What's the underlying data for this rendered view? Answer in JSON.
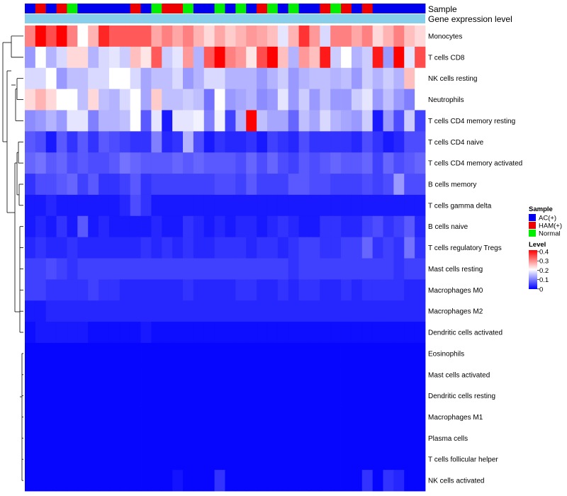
{
  "chart_data": {
    "type": "heatmap",
    "annotation_tracks": [
      "Sample",
      "Gene expression level"
    ],
    "rows": [
      "Monocytes",
      "T cells CD8",
      "NK cells resting",
      "Neutrophils",
      "T cells CD4 memory resting",
      "T cells CD4 naive",
      "T cells CD4 memory activated",
      "B cells memory",
      "T cells gamma delta",
      "B cells naive",
      "T cells regulatory  Tregs",
      "Mast cells resting",
      "Macrophages M0",
      "Macrophages M2",
      "Dendritic cells activated",
      "Eosinophils",
      "Mast cells activated",
      "Dendritic cells resting",
      "Macrophages M1",
      "Plasma cells",
      "T cells follicular helper",
      "NK cells activated"
    ],
    "sample_groups": [
      "AC(+)",
      "HAM(+)",
      "AC(+)",
      "HAM(+)",
      "Normal",
      "AC(+)",
      "AC(+)",
      "AC(+)",
      "AC(+)",
      "AC(+)",
      "HAM(+)",
      "AC(+)",
      "Normal",
      "HAM(+)",
      "HAM(+)",
      "Normal",
      "AC(+)",
      "AC(+)",
      "Normal",
      "AC(+)",
      "Normal",
      "AC(+)",
      "HAM(+)",
      "Normal",
      "AC(+)",
      "Normal",
      "AC(+)",
      "AC(+)",
      "HAM(+)",
      "Normal",
      "HAM(+)",
      "AC(+)",
      "HAM(+)",
      "AC(+)",
      "AC(+)",
      "AC(+)",
      "AC(+)",
      "AC(+)"
    ],
    "values": [
      [
        0.3,
        0.4,
        0.34,
        0.4,
        0.3,
        0.2,
        0.26,
        0.37,
        0.33,
        0.33,
        0.33,
        0.33,
        0.27,
        0.3,
        0.27,
        0.3,
        0.26,
        0.23,
        0.27,
        0.24,
        0.26,
        0.28,
        0.27,
        0.25,
        0.18,
        0.26,
        0.36,
        0.28,
        0.17,
        0.3,
        0.3,
        0.27,
        0.3,
        0.23,
        0.26,
        0.3,
        0.25,
        0.23
      ],
      [
        0.12,
        0.2,
        0.14,
        0.17,
        0.23,
        0.23,
        0.14,
        0.17,
        0.18,
        0.16,
        0.25,
        0.22,
        0.33,
        0.16,
        0.18,
        0.28,
        0.14,
        0.33,
        0.4,
        0.3,
        0.28,
        0.22,
        0.34,
        0.4,
        0.25,
        0.14,
        0.28,
        0.25,
        0.38,
        0.16,
        0.2,
        0.14,
        0.16,
        0.38,
        0.12,
        0.4,
        0.18,
        0.34
      ],
      [
        0.17,
        0.17,
        0.2,
        0.12,
        0.15,
        0.15,
        0.17,
        0.17,
        0.2,
        0.2,
        0.17,
        0.13,
        0.15,
        0.15,
        0.17,
        0.12,
        0.14,
        0.17,
        0.17,
        0.14,
        0.14,
        0.14,
        0.12,
        0.14,
        0.16,
        0.12,
        0.14,
        0.15,
        0.15,
        0.14,
        0.15,
        0.12,
        0.16,
        0.14,
        0.16,
        0.14,
        0.25,
        0.2
      ],
      [
        0.23,
        0.26,
        0.23,
        0.2,
        0.2,
        0.15,
        0.23,
        0.15,
        0.14,
        0.17,
        0.2,
        0.13,
        0.24,
        0.15,
        0.15,
        0.16,
        0.15,
        0.09,
        0.2,
        0.12,
        0.13,
        0.14,
        0.11,
        0.12,
        0.18,
        0.12,
        0.16,
        0.12,
        0.15,
        0.12,
        0.12,
        0.16,
        0.18,
        0.12,
        0.15,
        0.12,
        0.1,
        0.2
      ],
      [
        0.11,
        0.12,
        0.14,
        0.12,
        0.18,
        0.18,
        0.1,
        0.14,
        0.14,
        0.15,
        0.2,
        0.07,
        0.18,
        0.02,
        0.18,
        0.18,
        0.19,
        0.1,
        0.19,
        0.05,
        0.14,
        0.4,
        0.15,
        0.13,
        0.13,
        0.08,
        0.15,
        0.13,
        0.17,
        0.14,
        0.13,
        0.12,
        0.16,
        0.02,
        0.12,
        0.06,
        0.16,
        0.05
      ],
      [
        0.07,
        0.06,
        0.02,
        0.07,
        0.04,
        0.07,
        0.04,
        0.07,
        0.06,
        0.05,
        0.04,
        0.04,
        0.1,
        0.03,
        0.04,
        0.14,
        0.06,
        0.02,
        0.04,
        0.03,
        0.03,
        0.04,
        0.02,
        0.05,
        0.04,
        0.03,
        0.06,
        0.04,
        0.04,
        0.04,
        0.04,
        0.03,
        0.06,
        0.04,
        0.02,
        0.03,
        0.06,
        0.06
      ],
      [
        0.08,
        0.09,
        0.07,
        0.08,
        0.06,
        0.07,
        0.06,
        0.06,
        0.07,
        0.09,
        0.08,
        0.07,
        0.07,
        0.07,
        0.08,
        0.07,
        0.08,
        0.07,
        0.07,
        0.07,
        0.06,
        0.08,
        0.06,
        0.08,
        0.06,
        0.05,
        0.07,
        0.06,
        0.07,
        0.08,
        0.07,
        0.07,
        0.08,
        0.05,
        0.08,
        0.06,
        0.07,
        0.08
      ],
      [
        0.04,
        0.06,
        0.06,
        0.07,
        0.08,
        0.05,
        0.07,
        0.04,
        0.04,
        0.05,
        0.07,
        0.04,
        0.05,
        0.05,
        0.05,
        0.05,
        0.05,
        0.05,
        0.06,
        0.06,
        0.05,
        0.07,
        0.05,
        0.05,
        0.05,
        0.07,
        0.07,
        0.06,
        0.06,
        0.05,
        0.05,
        0.05,
        0.06,
        0.05,
        0.06,
        0.12,
        0.06,
        0.06
      ],
      [
        0.02,
        0.02,
        0.03,
        0.02,
        0.02,
        0.02,
        0.02,
        0.02,
        0.02,
        0.03,
        0.06,
        0.04,
        0.02,
        0.02,
        0.02,
        0.02,
        0.02,
        0.02,
        0.02,
        0.02,
        0.02,
        0.02,
        0.02,
        0.02,
        0.02,
        0.02,
        0.02,
        0.02,
        0.02,
        0.02,
        0.02,
        0.02,
        0.02,
        0.02,
        0.02,
        0.02,
        0.02,
        0.02
      ],
      [
        0.02,
        0.03,
        0.02,
        0.04,
        0.02,
        0.07,
        0.02,
        0.03,
        0.02,
        0.02,
        0.02,
        0.02,
        0.03,
        0.02,
        0.02,
        0.04,
        0.03,
        0.02,
        0.03,
        0.02,
        0.03,
        0.03,
        0.02,
        0.03,
        0.04,
        0.03,
        0.02,
        0.02,
        0.04,
        0.04,
        0.03,
        0.03,
        0.05,
        0.06,
        0.04,
        0.05,
        0.07,
        0.03
      ],
      [
        0.03,
        0.04,
        0.03,
        0.03,
        0.04,
        0.03,
        0.03,
        0.03,
        0.03,
        0.03,
        0.03,
        0.04,
        0.03,
        0.04,
        0.03,
        0.04,
        0.03,
        0.03,
        0.04,
        0.04,
        0.04,
        0.03,
        0.04,
        0.04,
        0.03,
        0.04,
        0.05,
        0.05,
        0.04,
        0.04,
        0.05,
        0.05,
        0.08,
        0.04,
        0.05,
        0.04,
        0.09,
        0.04
      ],
      [
        0.05,
        0.05,
        0.06,
        0.05,
        0.04,
        0.05,
        0.05,
        0.05,
        0.05,
        0.05,
        0.05,
        0.05,
        0.05,
        0.05,
        0.05,
        0.05,
        0.05,
        0.05,
        0.05,
        0.05,
        0.05,
        0.05,
        0.05,
        0.05,
        0.05,
        0.04,
        0.05,
        0.05,
        0.05,
        0.05,
        0.05,
        0.05,
        0.05,
        0.05,
        0.05,
        0.04,
        0.05,
        0.05
      ],
      [
        0.05,
        0.05,
        0.04,
        0.04,
        0.04,
        0.04,
        0.05,
        0.04,
        0.04,
        0.03,
        0.03,
        0.03,
        0.03,
        0.03,
        0.03,
        0.04,
        0.03,
        0.03,
        0.03,
        0.03,
        0.04,
        0.04,
        0.03,
        0.03,
        0.04,
        0.03,
        0.04,
        0.04,
        0.03,
        0.03,
        0.04,
        0.03,
        0.04,
        0.04,
        0.04,
        0.04,
        0.03,
        0.03
      ],
      [
        0.02,
        0.02,
        0.03,
        0.03,
        0.03,
        0.03,
        0.03,
        0.03,
        0.03,
        0.03,
        0.03,
        0.03,
        0.03,
        0.03,
        0.03,
        0.03,
        0.03,
        0.03,
        0.03,
        0.03,
        0.03,
        0.03,
        0.03,
        0.03,
        0.03,
        0.03,
        0.03,
        0.03,
        0.03,
        0.03,
        0.03,
        0.03,
        0.03,
        0.03,
        0.03,
        0.03,
        0.03,
        0.03
      ],
      [
        0.01,
        0.02,
        0.02,
        0.02,
        0.02,
        0.02,
        0.01,
        0.01,
        0.01,
        0.01,
        0.01,
        0.02,
        0.01,
        0.01,
        0.01,
        0.01,
        0.01,
        0.01,
        0.01,
        0.01,
        0.01,
        0.01,
        0.01,
        0.01,
        0.01,
        0.01,
        0.01,
        0.01,
        0.01,
        0.01,
        0.01,
        0.01,
        0.01,
        0.01,
        0.01,
        0.01,
        0.01,
        0.01
      ],
      [
        0.005,
        0.005,
        0.005,
        0.005,
        0.005,
        0.005,
        0.005,
        0.005,
        0.005,
        0.005,
        0.005,
        0.005,
        0.005,
        0.005,
        0.005,
        0.005,
        0.005,
        0.005,
        0.005,
        0.005,
        0.005,
        0.005,
        0.005,
        0.005,
        0.005,
        0.005,
        0.005,
        0.005,
        0.005,
        0.005,
        0.005,
        0.005,
        0.005,
        0.005,
        0.005,
        0.005,
        0.005,
        0.005
      ],
      [
        0.005,
        0.005,
        0.005,
        0.005,
        0.005,
        0.005,
        0.005,
        0.005,
        0.005,
        0.005,
        0.005,
        0.005,
        0.005,
        0.005,
        0.005,
        0.005,
        0.005,
        0.005,
        0.005,
        0.005,
        0.005,
        0.005,
        0.005,
        0.005,
        0.005,
        0.005,
        0.005,
        0.005,
        0.005,
        0.005,
        0.005,
        0.005,
        0.005,
        0.005,
        0.005,
        0.005,
        0.005,
        0.005
      ],
      [
        0.005,
        0.005,
        0.005,
        0.005,
        0.005,
        0.005,
        0.005,
        0.005,
        0.005,
        0.005,
        0.005,
        0.005,
        0.005,
        0.005,
        0.005,
        0.005,
        0.005,
        0.005,
        0.005,
        0.005,
        0.005,
        0.005,
        0.005,
        0.005,
        0.005,
        0.005,
        0.005,
        0.005,
        0.005,
        0.005,
        0.005,
        0.005,
        0.005,
        0.005,
        0.005,
        0.005,
        0.005,
        0.005
      ],
      [
        0.005,
        0.005,
        0.005,
        0.005,
        0.005,
        0.005,
        0.005,
        0.005,
        0.005,
        0.005,
        0.005,
        0.005,
        0.005,
        0.005,
        0.005,
        0.005,
        0.005,
        0.005,
        0.005,
        0.005,
        0.005,
        0.005,
        0.005,
        0.005,
        0.005,
        0.005,
        0.005,
        0.005,
        0.005,
        0.005,
        0.005,
        0.005,
        0.005,
        0.005,
        0.005,
        0.005,
        0.005,
        0.005
      ],
      [
        0.005,
        0.005,
        0.005,
        0.005,
        0.005,
        0.005,
        0.005,
        0.005,
        0.005,
        0.005,
        0.005,
        0.005,
        0.005,
        0.005,
        0.005,
        0.005,
        0.005,
        0.005,
        0.005,
        0.005,
        0.005,
        0.005,
        0.005,
        0.005,
        0.005,
        0.005,
        0.005,
        0.005,
        0.005,
        0.005,
        0.005,
        0.005,
        0.005,
        0.005,
        0.005,
        0.005,
        0.005,
        0.005
      ],
      [
        0.005,
        0.005,
        0.005,
        0.005,
        0.005,
        0.005,
        0.005,
        0.005,
        0.005,
        0.005,
        0.005,
        0.005,
        0.005,
        0.005,
        0.005,
        0.005,
        0.005,
        0.005,
        0.005,
        0.005,
        0.005,
        0.005,
        0.005,
        0.005,
        0.005,
        0.005,
        0.005,
        0.005,
        0.005,
        0.005,
        0.005,
        0.005,
        0.005,
        0.005,
        0.005,
        0.005,
        0.005,
        0.005
      ],
      [
        0.005,
        0.005,
        0.005,
        0.005,
        0.005,
        0.005,
        0.005,
        0.005,
        0.005,
        0.005,
        0.005,
        0.005,
        0.005,
        0.005,
        0.015,
        0.005,
        0.005,
        0.005,
        0.04,
        0.005,
        0.005,
        0.005,
        0.005,
        0.005,
        0.005,
        0.005,
        0.005,
        0.005,
        0.005,
        0.005,
        0.005,
        0.005,
        0.04,
        0.005,
        0.04,
        0.03,
        0.005,
        0.005
      ]
    ],
    "legend": {
      "sample_title": "Sample",
      "sample_items": [
        {
          "label": "AC(+)",
          "color": "#0000ee"
        },
        {
          "label": "HAM(+)",
          "color": "#ee0000"
        },
        {
          "label": "Normal",
          "color": "#00ee00"
        }
      ],
      "level_title": "Level",
      "level_ticks": [
        "0.4",
        "0.3",
        "0.2",
        "0.1",
        "0"
      ],
      "range": [
        0,
        0.4
      ]
    },
    "colors": {
      "low": "#0000ff",
      "mid": "#ffffff",
      "high": "#ff0000",
      "expression_track": "#87ceeb"
    },
    "dendrogram": "left, hierarchical clustering of cell types"
  }
}
